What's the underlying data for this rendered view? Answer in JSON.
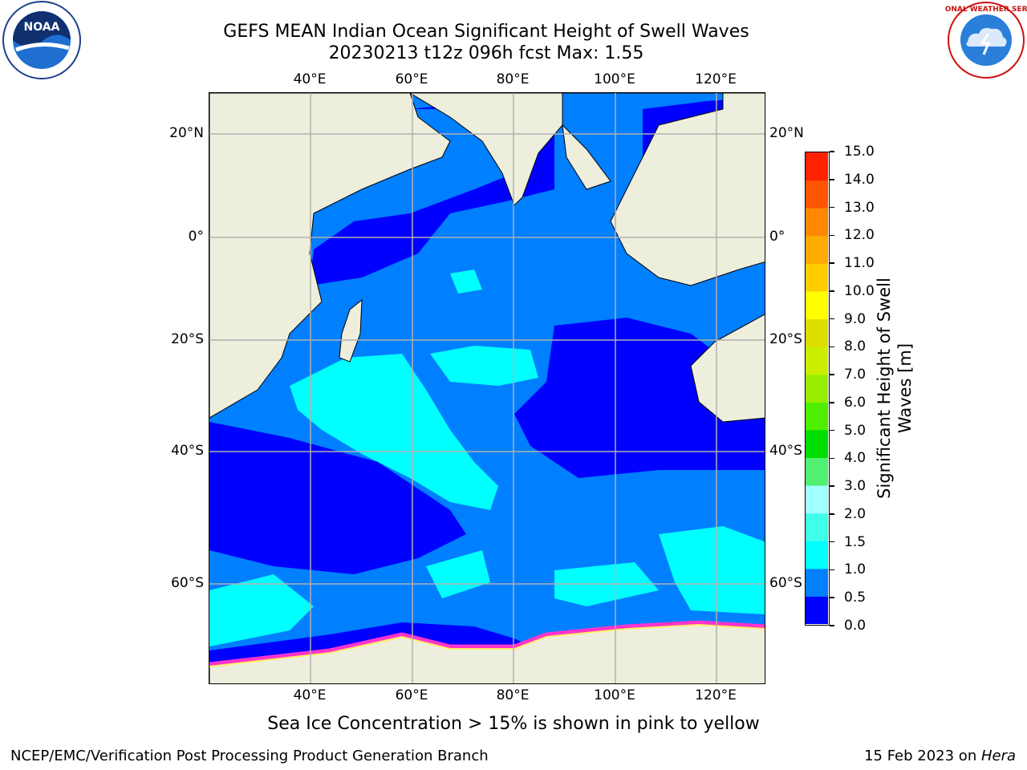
{
  "header": {
    "title_line1": "GEFS MEAN Indian Ocean Significant Height of Swell Waves",
    "title_line2": "20230213 t12z 096h fcst   Max: 1.55"
  },
  "map": {
    "lon_labels": [
      "40°E",
      "60°E",
      "80°E",
      "100°E",
      "120°E"
    ],
    "lat_labels_left": [
      "20°N",
      "0°",
      "20°S",
      "40°S",
      "60°S"
    ],
    "lat_labels_right": [
      "20°N",
      "0°",
      "20°S",
      "40°S",
      "60°S"
    ],
    "colors": {
      "land": "#eeeedd",
      "ocean_0_0_5": "#0000ff",
      "ocean_0_5_1": "#007fff",
      "ocean_1_1_5": "#00ffff",
      "ice": "#ff33cc",
      "grid": "#b0b0b0"
    }
  },
  "colorbar": {
    "label": "Significant Height of Swell Waves [m]",
    "ticks": [
      "0.0",
      "0.5",
      "1.0",
      "1.5",
      "2.0",
      "3.0",
      "4.0",
      "5.0",
      "6.0",
      "7.0",
      "8.0",
      "9.0",
      "10.0",
      "11.0",
      "12.0",
      "13.0",
      "14.0",
      "15.0"
    ],
    "colors": [
      "#0000ff",
      "#007fff",
      "#00ffff",
      "#40ffe8",
      "#a0ffff",
      "#50f070",
      "#00dd00",
      "#50ee00",
      "#99ee00",
      "#ccee00",
      "#dddd00",
      "#ffff00",
      "#ffcc00",
      "#ffaa00",
      "#ff8800",
      "#ff5500",
      "#ff2200"
    ]
  },
  "footer": {
    "subtitle": "Sea Ice Concentration > 15% is shown in pink to yellow",
    "credit": "NCEP/EMC/Verification Post Processing Product Generation Branch",
    "date": "15 Feb 2023 on ",
    "machine": "Hera"
  },
  "logos": {
    "left": "NOAA",
    "right": "NATIONAL WEATHER SERVICE"
  }
}
